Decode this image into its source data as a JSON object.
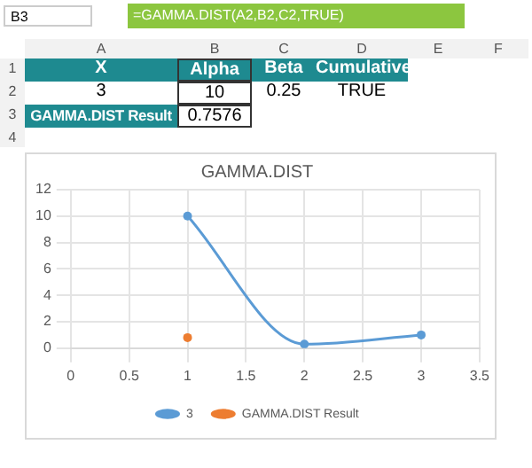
{
  "chart_data": {
    "type": "scatter",
    "title": "GAMMA.DIST",
    "annotations": [
      "B3",
      "=GAMMA.DIST(A2,B2,C2,TRUE)",
      "A",
      "B",
      "C",
      "D",
      "E",
      "F",
      "1",
      "X",
      "Alpha",
      "Beta",
      "Cumulative",
      "2",
      "3",
      "10",
      "0.25",
      "TRUE",
      "3",
      "GAMMA.DIST Result",
      "0.7576",
      "4"
    ],
    "series": [
      {
        "name": "3",
        "type": "line",
        "color": "#5b9bd5",
        "x": [
          1,
          2,
          3
        ],
        "values": [
          10,
          0.3,
          1
        ]
      },
      {
        "name": "GAMMA.DIST Result",
        "type": "scatter",
        "color": "#ed7d31",
        "x": [
          1
        ],
        "values": [
          0.8
        ]
      }
    ],
    "xlim": [
      0,
      3.5
    ],
    "xticks": [
      0,
      0.5,
      1,
      1.5,
      2,
      2.5,
      3,
      3.5
    ],
    "ylim": [
      0,
      12
    ],
    "yticks": [
      0,
      2,
      4,
      6,
      8,
      10,
      12
    ],
    "grid": true,
    "legend": "bottom",
    "marker": "circle",
    "line_style": "solid"
  }
}
